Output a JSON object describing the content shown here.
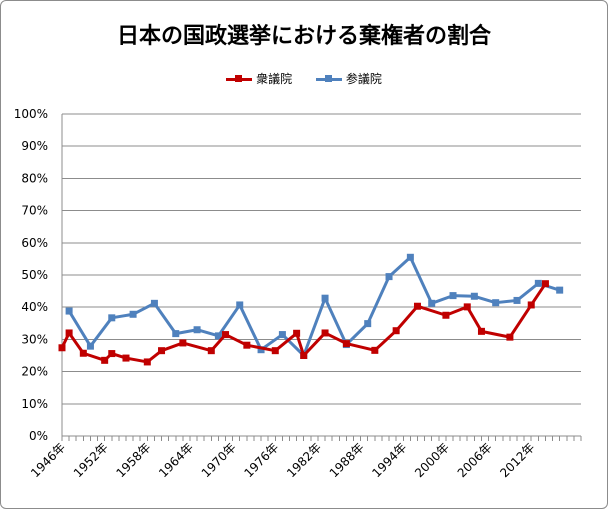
{
  "chart_data": {
    "type": "line",
    "title": "日本の国政選挙における棄権者の割合",
    "xlabel": "",
    "ylabel": "",
    "ylim": [
      0,
      100
    ],
    "xlim": [
      1946,
      2019
    ],
    "yticks": [
      "0%",
      "10%",
      "20%",
      "30%",
      "40%",
      "50%",
      "60%",
      "70%",
      "80%",
      "90%",
      "100%"
    ],
    "xticks": [
      {
        "year": 1946,
        "label": "1946年"
      },
      {
        "year": 1952,
        "label": "1952年"
      },
      {
        "year": 1958,
        "label": "1958年"
      },
      {
        "year": 1964,
        "label": "1964年"
      },
      {
        "year": 1970,
        "label": "1970年"
      },
      {
        "year": 1976,
        "label": "1976年"
      },
      {
        "year": 1982,
        "label": "1982年"
      },
      {
        "year": 1988,
        "label": "1988年"
      },
      {
        "year": 1994,
        "label": "1994年"
      },
      {
        "year": 2000,
        "label": "2000年"
      },
      {
        "year": 2006,
        "label": "2006年"
      },
      {
        "year": 2012,
        "label": "2012年"
      }
    ],
    "grid": true,
    "legend_position": "top",
    "series": [
      {
        "name": "衆議院",
        "color": "#c00000",
        "marker": "square",
        "points": [
          [
            1946,
            27.4
          ],
          [
            1947,
            32.0
          ],
          [
            1949,
            25.7
          ],
          [
            1952,
            23.5
          ],
          [
            1953,
            25.6
          ],
          [
            1955,
            24.2
          ],
          [
            1958,
            23.0
          ],
          [
            1960,
            26.5
          ],
          [
            1963,
            28.9
          ],
          [
            1967,
            26.5
          ],
          [
            1969,
            31.5
          ],
          [
            1972,
            28.2
          ],
          [
            1976,
            26.5
          ],
          [
            1979,
            31.9
          ],
          [
            1980,
            25.0
          ],
          [
            1983,
            32.0
          ],
          [
            1986,
            28.7
          ],
          [
            1990,
            26.6
          ],
          [
            1993,
            32.7
          ],
          [
            1996,
            40.3
          ],
          [
            2000,
            37.5
          ],
          [
            2003,
            40.1
          ],
          [
            2005,
            32.5
          ],
          [
            2009,
            30.7
          ],
          [
            2012,
            40.7
          ],
          [
            2014,
            47.3
          ]
        ]
      },
      {
        "name": "参議院",
        "color": "#4f81bd",
        "marker": "square",
        "points": [
          [
            1947,
            38.8
          ],
          [
            1950,
            27.9
          ],
          [
            1953,
            36.7
          ],
          [
            1956,
            37.8
          ],
          [
            1959,
            41.2
          ],
          [
            1962,
            31.8
          ],
          [
            1965,
            33.0
          ],
          [
            1968,
            31.1
          ],
          [
            1971,
            40.7
          ],
          [
            1974,
            26.8
          ],
          [
            1977,
            31.5
          ],
          [
            1980,
            25.0
          ],
          [
            1983,
            42.8
          ],
          [
            1986,
            28.4
          ],
          [
            1989,
            34.9
          ],
          [
            1992,
            49.5
          ],
          [
            1995,
            55.5
          ],
          [
            1998,
            41.2
          ],
          [
            2001,
            43.6
          ],
          [
            2004,
            43.4
          ],
          [
            2007,
            41.4
          ],
          [
            2010,
            42.1
          ],
          [
            2013,
            47.4
          ],
          [
            2016,
            45.3
          ]
        ]
      }
    ]
  }
}
